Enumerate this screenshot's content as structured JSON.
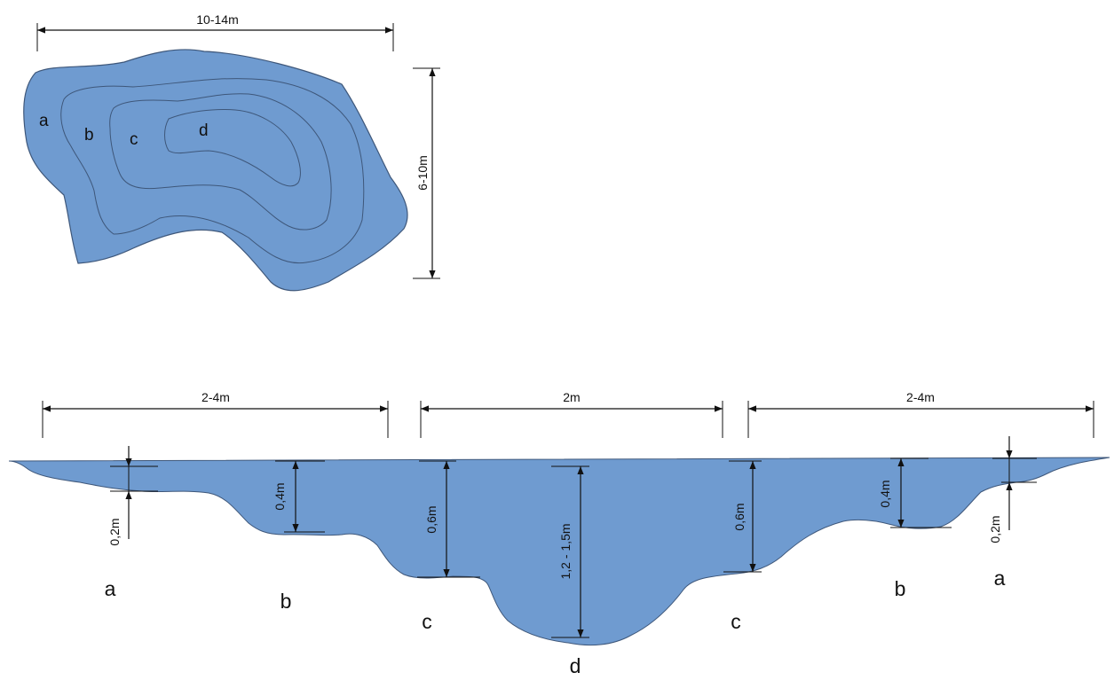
{
  "colors": {
    "water": "#6f9bd0",
    "outline": "#3e577a",
    "line": "#111111"
  },
  "plan_view": {
    "width_label": "10-14m",
    "height_label": "6-10m",
    "zones": [
      "a",
      "b",
      "c",
      "d"
    ]
  },
  "section_view": {
    "span_left_label": "2-4m",
    "span_middle_label": "2m",
    "span_right_label": "2-4m",
    "depth_left_a": "0,2m",
    "depth_left_b": "0,4m",
    "depth_left_c": "0,6m",
    "depth_center_d": "1,2 - 1,5m",
    "depth_right_c": "0,6m",
    "depth_right_b": "0,4m",
    "depth_right_a": "0,2m",
    "zone_left_a": "a",
    "zone_left_b": "b",
    "zone_left_c": "c",
    "zone_center_d": "d",
    "zone_right_c": "c",
    "zone_right_b": "b",
    "zone_right_a": "a"
  }
}
